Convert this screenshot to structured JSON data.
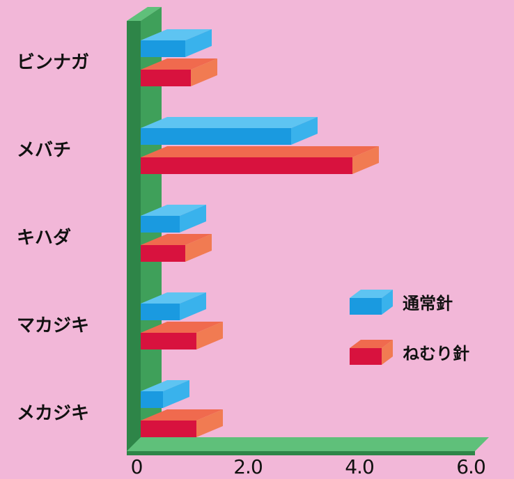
{
  "chart_data": {
    "type": "bar",
    "orientation": "horizontal",
    "style": "3d",
    "categories": [
      "ビンナガ",
      "メバチ",
      "キハダ",
      "マカジキ",
      "メカジキ"
    ],
    "series": [
      {
        "name": "通常針",
        "values": [
          0.8,
          2.7,
          0.7,
          0.7,
          0.4
        ]
      },
      {
        "name": "ねむり針",
        "values": [
          0.9,
          3.8,
          0.8,
          1.0,
          1.0
        ]
      }
    ],
    "xlim": [
      0,
      6.0
    ],
    "xticks": [
      "0",
      "2.0",
      "4.0",
      "6.0"
    ],
    "title": "",
    "xlabel": "",
    "ylabel": "",
    "legend_position": "right",
    "colors": {
      "background": "#f2b7d8",
      "axis_front": "#3fa05a",
      "axis_top": "#5fc07a",
      "axis_side": "#2e8548",
      "series": [
        {
          "front": "#1a9ae0",
          "top": "#5ec4f2",
          "side": "#39b2ec"
        },
        {
          "front": "#d8123e",
          "top": "#f06a4e",
          "side": "#f17b52"
        }
      ]
    }
  }
}
